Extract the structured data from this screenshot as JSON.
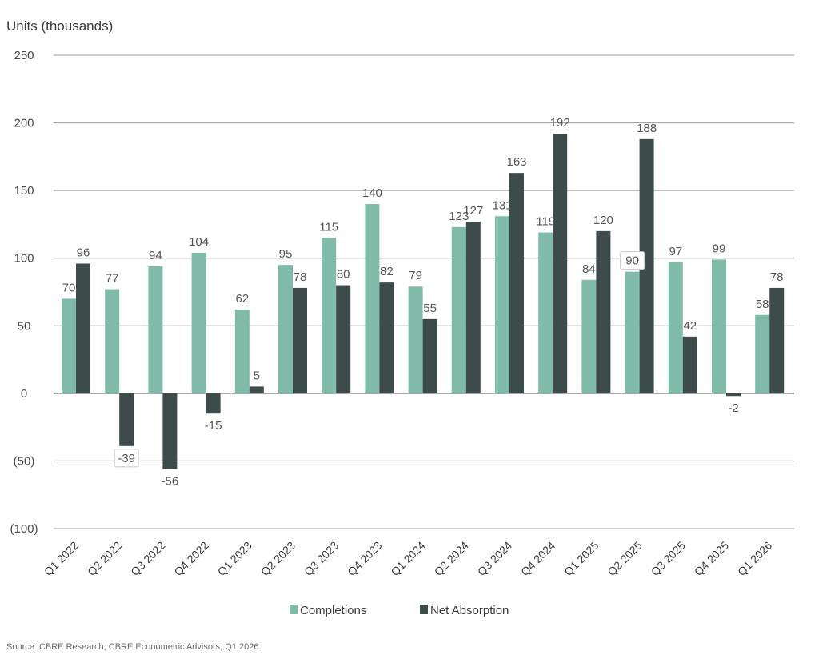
{
  "chart_data": {
    "type": "bar",
    "ylabel": "Units (thousands)",
    "ylim": [
      -100,
      250
    ],
    "yticks": [
      {
        "value": 250,
        "label": "250"
      },
      {
        "value": 200,
        "label": "200"
      },
      {
        "value": 150,
        "label": "150"
      },
      {
        "value": 100,
        "label": "100"
      },
      {
        "value": 50,
        "label": "50"
      },
      {
        "value": 0,
        "label": "0"
      },
      {
        "value": -50,
        "label": "(50)"
      },
      {
        "value": -100,
        "label": "(100)"
      }
    ],
    "grid": true,
    "legend_position": "bottom-center",
    "categories": [
      "Q1 2022",
      "Q2 2022",
      "Q3 2022",
      "Q4 2022",
      "Q1 2023",
      "Q2 2023",
      "Q3 2023",
      "Q4 2023",
      "Q1 2024",
      "Q2 2024",
      "Q3 2024",
      "Q4 2024",
      "Q1 2025",
      "Q2 2025",
      "Q3 2025",
      "Q4 2025",
      "Q1 2026"
    ],
    "series": [
      {
        "name": "Completions",
        "color": "#7fbba8",
        "values": [
          70,
          77,
          94,
          104,
          62,
          95,
          115,
          140,
          79,
          123,
          131,
          119,
          84,
          90,
          97,
          99,
          58
        ]
      },
      {
        "name": "Net Absorption",
        "color": "#3d4c4a",
        "values": [
          96,
          -39,
          -56,
          -15,
          5,
          78,
          80,
          82,
          55,
          127,
          163,
          192,
          120,
          188,
          42,
          -2,
          78
        ]
      }
    ],
    "boxed_labels": [
      {
        "series": 1,
        "index": 1
      },
      {
        "series": 0,
        "index": 13
      }
    ],
    "source": "Source: CBRE Research, CBRE Econometric Advisors, Q1 2026."
  }
}
